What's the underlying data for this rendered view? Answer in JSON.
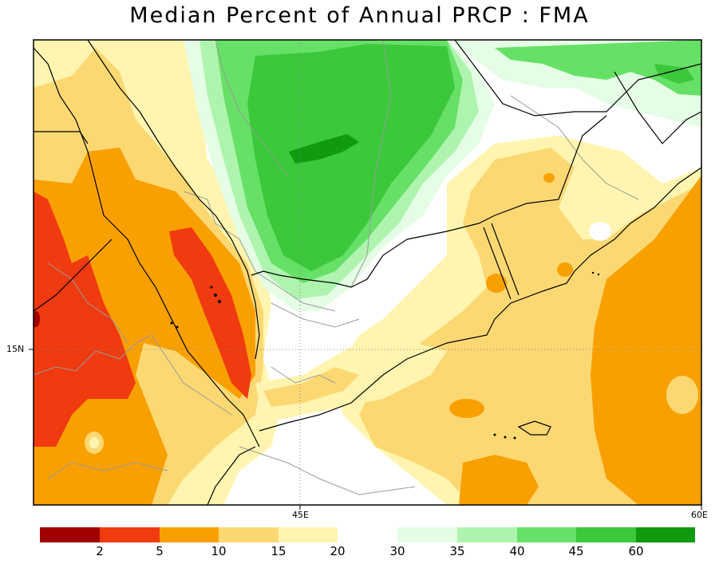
{
  "title": "Median Percent of Annual PRCP  :  FMA",
  "axes": {
    "lat_label": "15N",
    "lon_labels": [
      "45E",
      "60E"
    ]
  },
  "colors": {
    "lt2": "#a00000",
    "c2_5": "#f03a10",
    "c5_10": "#f8a000",
    "c10_15": "#fcd873",
    "c15_20": "#fff5b0",
    "c20_30": "#ffffff",
    "c30_35": "#e4fde4",
    "c35_40": "#aef4ae",
    "c40_45": "#66e066",
    "c45_60": "#3bc83b",
    "gt60": "#0f9a0f"
  },
  "colorbar": {
    "labels": [
      "2",
      "5",
      "10",
      "15",
      "20",
      "30",
      "35",
      "40",
      "45",
      "60"
    ]
  }
}
